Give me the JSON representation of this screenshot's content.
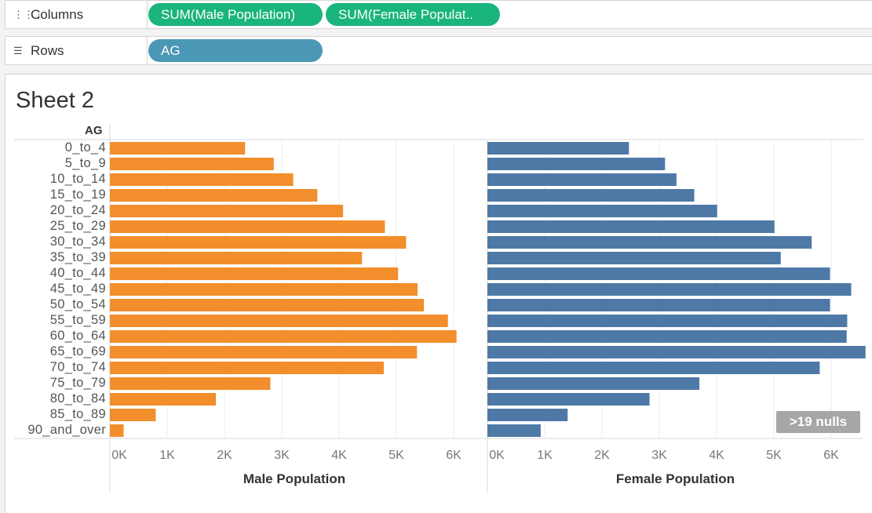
{
  "shelves": {
    "columns": {
      "label": "Columns",
      "icon": "columns-icon",
      "pills": [
        "SUM(Male Population)",
        "SUM(Female Populat.."
      ]
    },
    "rows": {
      "label": "Rows",
      "icon": "rows-icon",
      "pills": [
        "AG"
      ]
    }
  },
  "sheet": {
    "title": "Sheet 2",
    "row_header": "AG",
    "nulls_badge": ">19 nulls"
  },
  "colors": {
    "male": "#f28e2b",
    "female": "#4e79a7",
    "green_pill": "#1ab47d",
    "blue_pill": "#4a98b5"
  },
  "chart_data": {
    "type": "bar",
    "orientation": "horizontal",
    "categories": [
      "0_to_4",
      "5_to_9",
      "10_to_14",
      "15_to_19",
      "20_to_24",
      "25_to_29",
      "30_to_34",
      "35_to_39",
      "40_to_44",
      "45_to_49",
      "50_to_54",
      "55_to_59",
      "60_to_64",
      "65_to_69",
      "70_to_74",
      "75_to_79",
      "80_to_84",
      "85_to_89",
      "90_and_over"
    ],
    "series": [
      {
        "name": "Male Population",
        "values": [
          2360,
          2860,
          3200,
          3620,
          4070,
          4800,
          5170,
          4400,
          5030,
          5370,
          5480,
          5900,
          6050,
          5360,
          4780,
          2800,
          1850,
          800,
          240
        ]
      },
      {
        "name": "Female Population",
        "values": [
          2470,
          3100,
          3300,
          3610,
          4010,
          5010,
          5660,
          5120,
          5980,
          6350,
          5980,
          6280,
          6270,
          6600,
          5800,
          3700,
          2830,
          1400,
          930
        ]
      }
    ],
    "xlabels": [
      "Male Population",
      "Female Population"
    ],
    "ticks": [
      0,
      1000,
      2000,
      3000,
      4000,
      5000,
      6000
    ],
    "tick_labels": [
      "0K",
      "1K",
      "2K",
      "3K",
      "4K",
      "5K",
      "6K"
    ],
    "xlim": [
      0,
      6800
    ],
    "grid": true
  }
}
